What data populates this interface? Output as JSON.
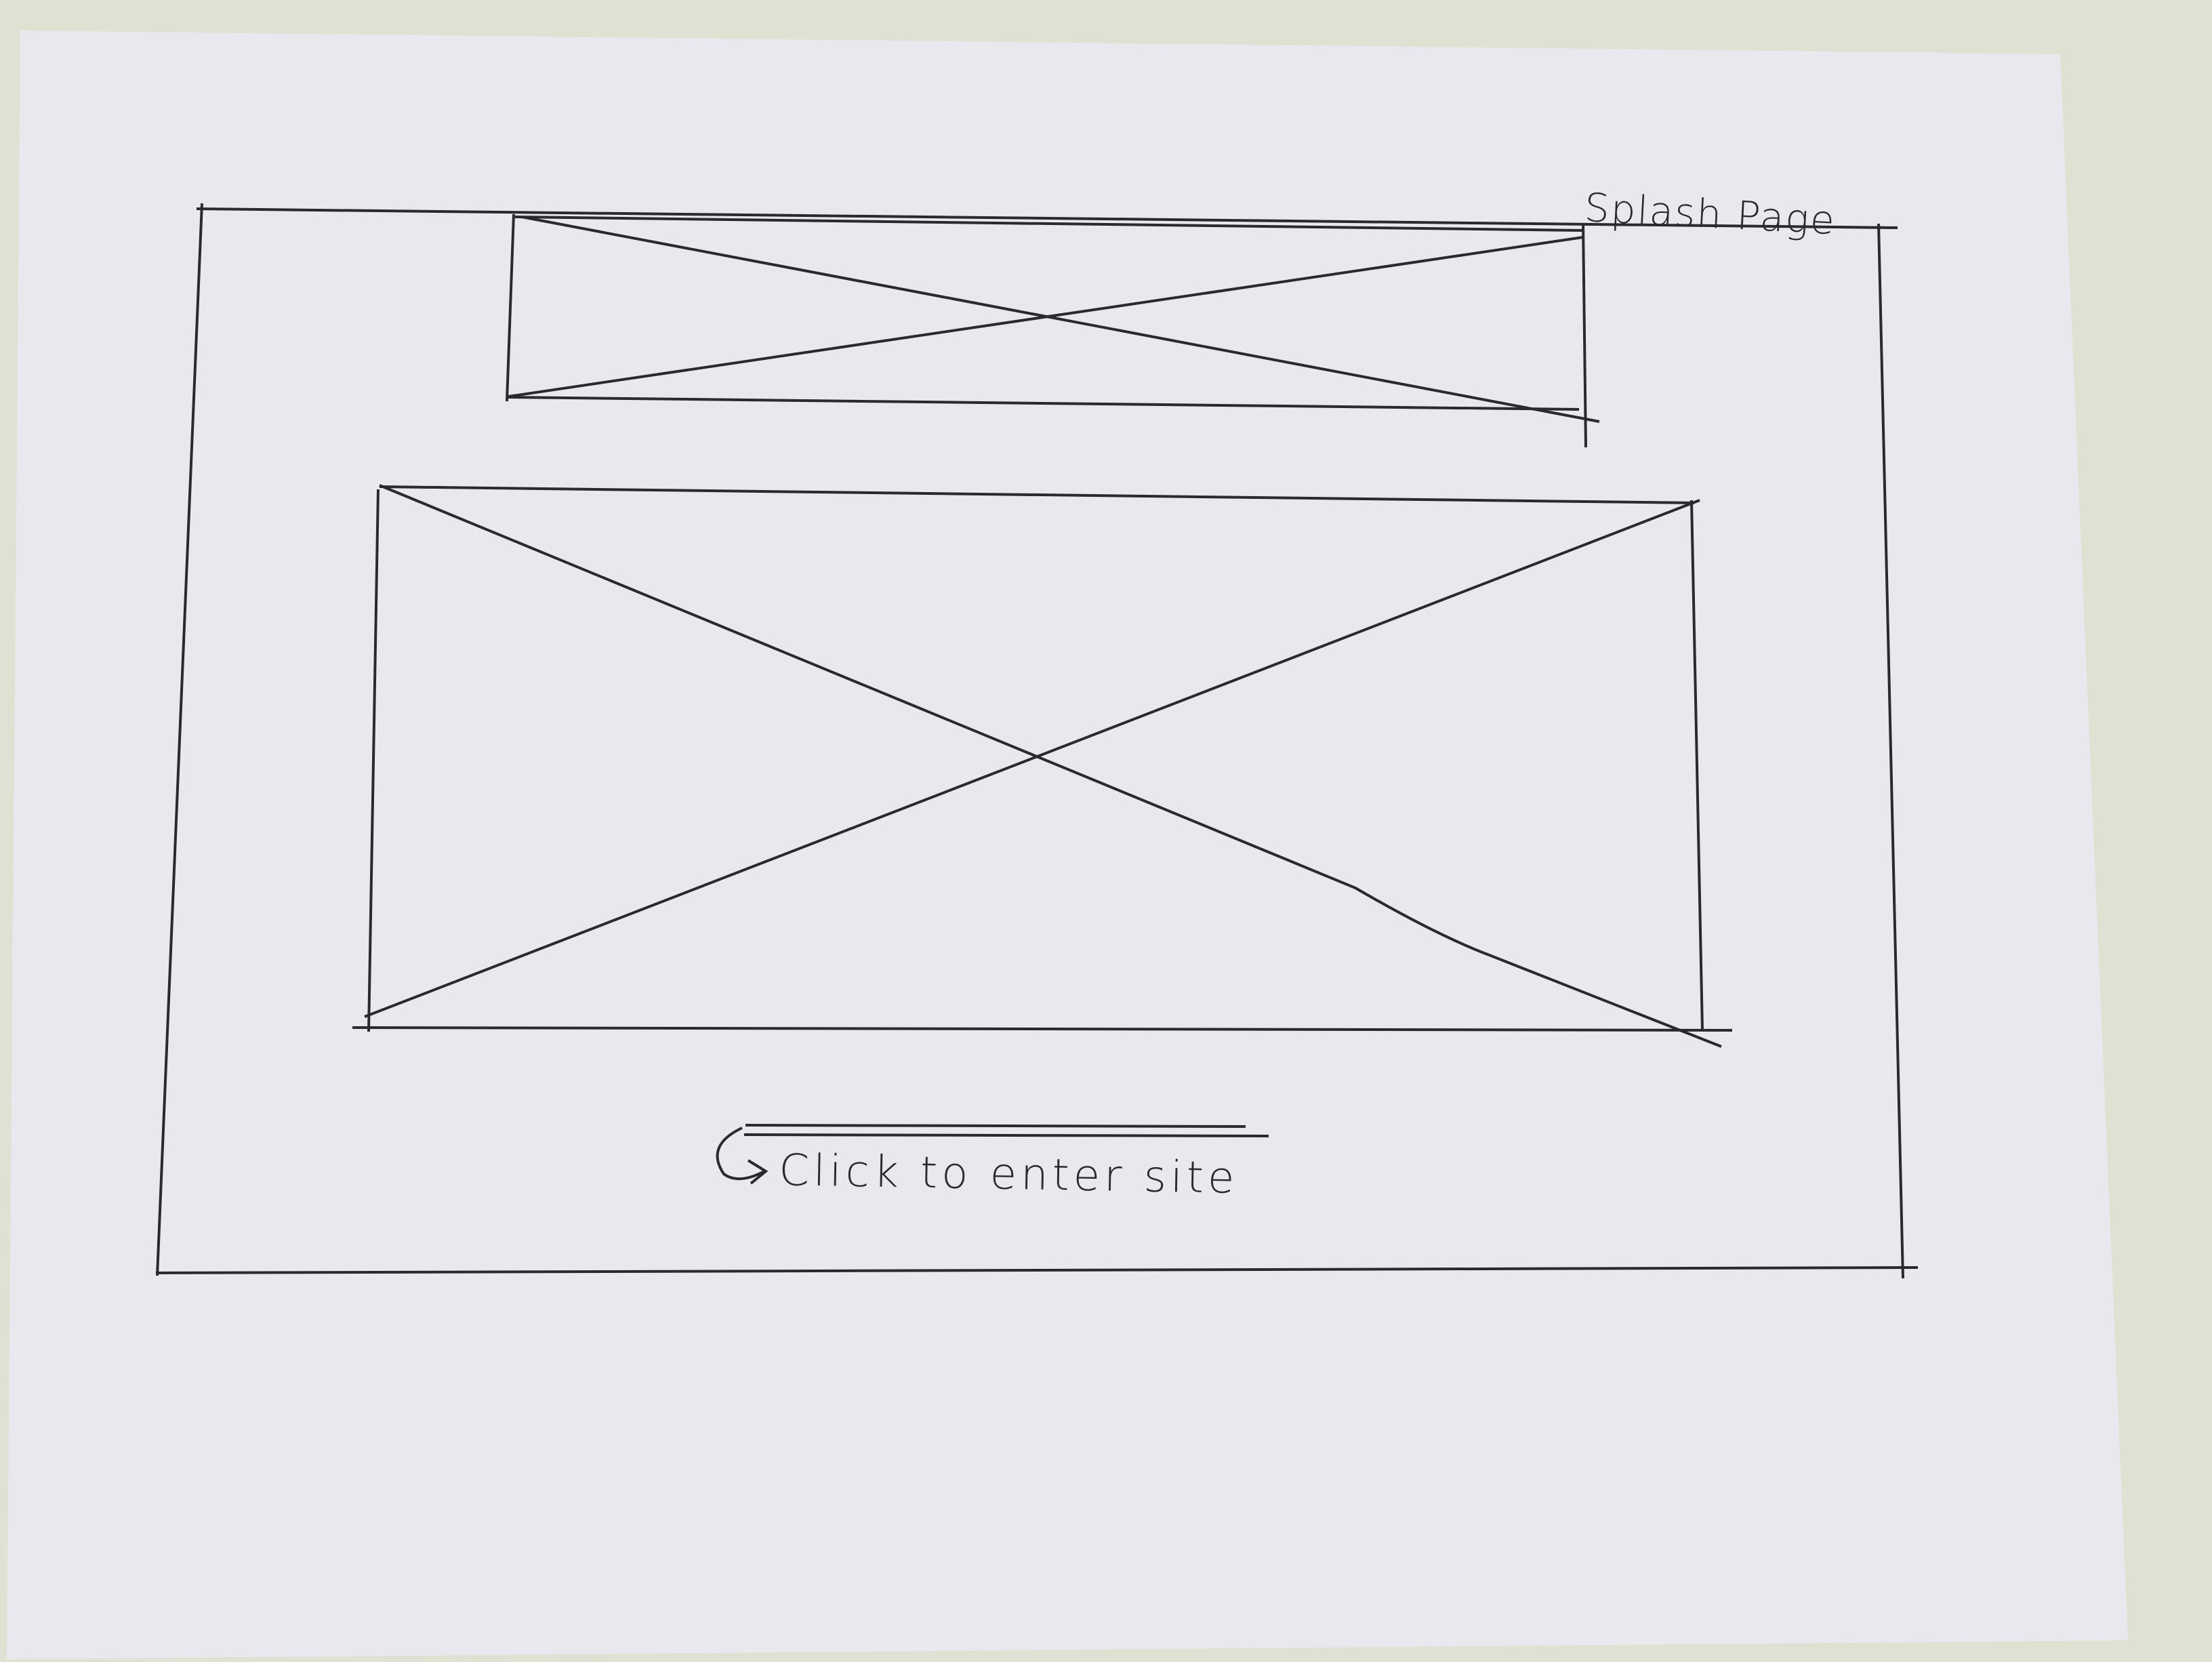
{
  "page": {
    "title": "Splash Page"
  },
  "cta": {
    "label": "Click to enter site",
    "icon": "curved-arrow-icon"
  },
  "colors": {
    "paper": "#e8e8ee",
    "background": "#dfe2d3",
    "ink": "#2a2a2e"
  }
}
